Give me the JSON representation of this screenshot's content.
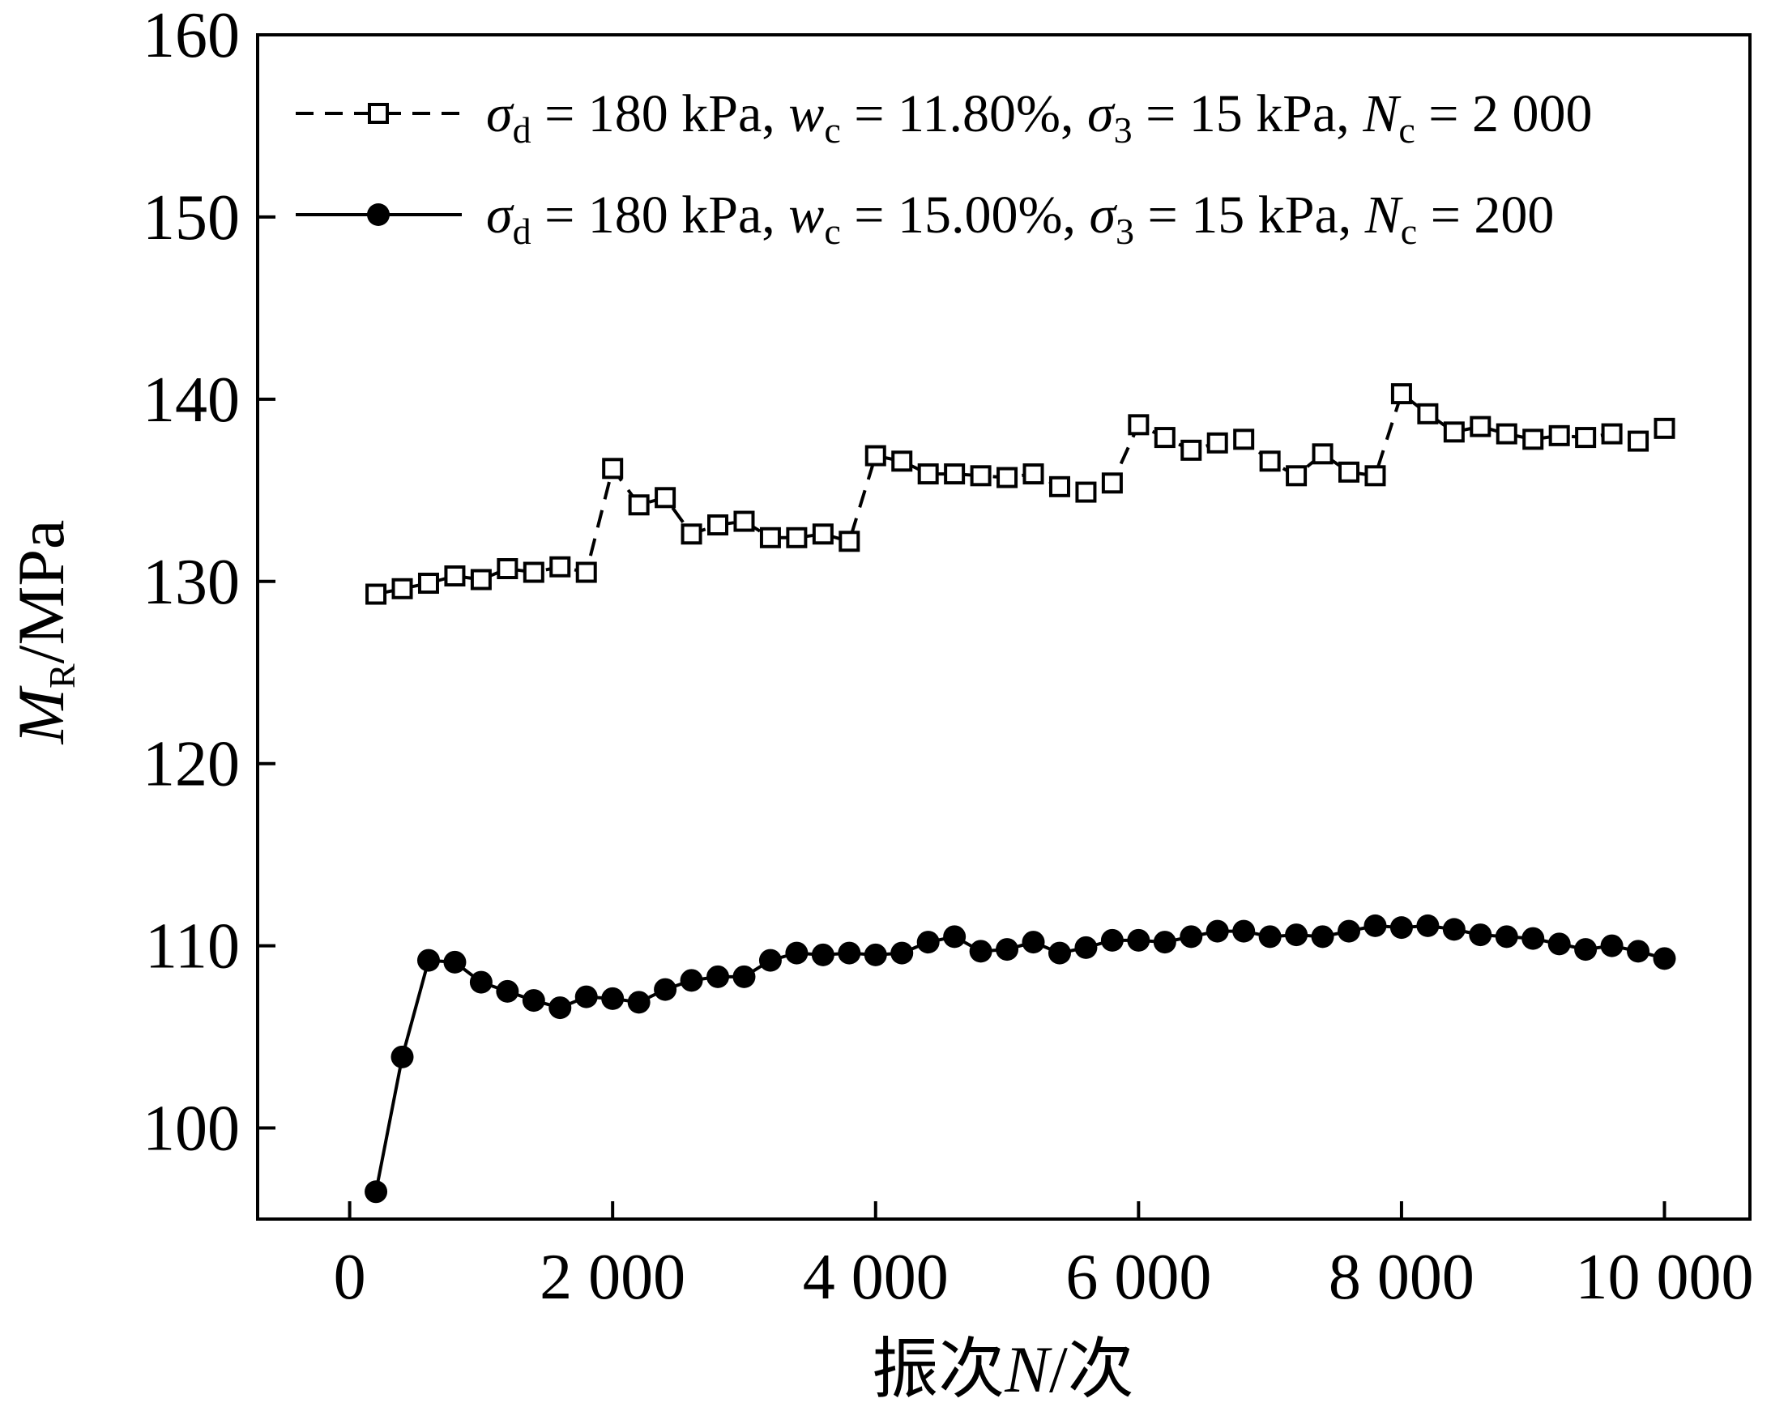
{
  "chart_data": {
    "type": "line",
    "ylabel": {
      "main": "M",
      "sub": "R",
      "rest": "/MPa"
    },
    "xlabel": {
      "pre": "振次",
      "italic": "N",
      "post": "/次"
    },
    "xlim": [
      -700,
      10650
    ],
    "ylim": [
      95,
      160
    ],
    "xticks": [
      0,
      2000,
      4000,
      6000,
      8000,
      10000
    ],
    "xtick_labels": [
      "0",
      "2 000",
      "4 000",
      "6 000",
      "8 000",
      "10 000"
    ],
    "yticks": [
      100,
      110,
      120,
      130,
      140,
      150,
      160
    ],
    "ytick_labels": [
      "100",
      "110",
      "120",
      "130",
      "140",
      "150",
      "160"
    ],
    "grid": false,
    "legend_position": "top",
    "series": [
      {
        "style": "dashed-open-square",
        "legend": [
          "σ",
          "d",
          " = 180 kPa, ",
          "w",
          "c",
          " = 11.80%, ",
          "σ",
          "3",
          " = 15 kPa, ",
          "N",
          "c",
          " = 2 000"
        ],
        "x": [
          200,
          400,
          600,
          800,
          1000,
          1200,
          1400,
          1600,
          1800,
          2000,
          2200,
          2400,
          2600,
          2800,
          3000,
          3200,
          3400,
          3600,
          3800,
          4000,
          4200,
          4400,
          4600,
          4800,
          5000,
          5200,
          5400,
          5600,
          5800,
          6000,
          6200,
          6400,
          6600,
          6800,
          7000,
          7200,
          7400,
          7600,
          7800,
          8000,
          8200,
          8400,
          8600,
          8800,
          9000,
          9200,
          9400,
          9600,
          9800,
          10000
        ],
        "y": [
          129.3,
          129.6,
          129.9,
          130.3,
          130.1,
          130.7,
          130.5,
          130.8,
          130.5,
          136.2,
          134.2,
          134.6,
          132.6,
          133.1,
          133.3,
          132.4,
          132.4,
          132.6,
          132.2,
          136.9,
          136.6,
          135.9,
          135.9,
          135.8,
          135.7,
          135.9,
          135.2,
          134.9,
          135.4,
          138.6,
          137.9,
          137.2,
          137.6,
          137.8,
          136.6,
          135.8,
          137.0,
          136.0,
          135.8,
          140.3,
          139.2,
          138.2,
          138.5,
          138.1,
          137.8,
          138.0,
          137.9,
          138.1,
          137.7,
          138.4
        ]
      },
      {
        "style": "solid-filled-circle",
        "legend": [
          "σ",
          "d",
          " = 180 kPa, ",
          "w",
          "c",
          " = 15.00%, ",
          "σ",
          "3",
          " = 15 kPa, ",
          "N",
          "c",
          " = 200"
        ],
        "x": [
          200,
          400,
          600,
          800,
          1000,
          1200,
          1400,
          1600,
          1800,
          2000,
          2200,
          2400,
          2600,
          2800,
          3000,
          3200,
          3400,
          3600,
          3800,
          4000,
          4200,
          4400,
          4600,
          4800,
          5000,
          5200,
          5400,
          5600,
          5800,
          6000,
          6200,
          6400,
          6600,
          6800,
          7000,
          7200,
          7400,
          7600,
          7800,
          8000,
          8200,
          8400,
          8600,
          8800,
          9000,
          9200,
          9400,
          9600,
          9800,
          10000
        ],
        "y": [
          96.5,
          103.9,
          109.2,
          109.1,
          108.0,
          107.5,
          107.0,
          106.6,
          107.2,
          107.1,
          106.9,
          107.6,
          108.1,
          108.3,
          108.3,
          109.2,
          109.6,
          109.5,
          109.6,
          109.5,
          109.6,
          110.2,
          110.5,
          109.7,
          109.8,
          110.2,
          109.6,
          109.9,
          110.3,
          110.3,
          110.2,
          110.5,
          110.8,
          110.8,
          110.5,
          110.6,
          110.5,
          110.8,
          111.1,
          111.0,
          111.1,
          110.9,
          110.6,
          110.5,
          110.4,
          110.1,
          109.8,
          110.0,
          109.7,
          109.3
        ]
      }
    ]
  }
}
